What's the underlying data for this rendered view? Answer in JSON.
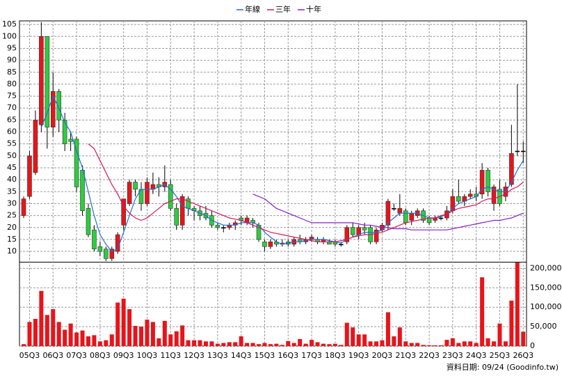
{
  "chart_data": {
    "type": "candlestick",
    "categories": [
      null,
      "05Q3",
      null,
      null,
      null,
      "06Q3",
      null,
      null,
      null,
      "07Q3",
      null,
      null,
      null,
      "08Q3",
      null,
      null,
      null,
      "09Q3",
      null,
      null,
      null,
      "10Q3",
      null,
      null,
      null,
      "11Q3",
      null,
      null,
      null,
      "12Q3",
      null,
      null,
      null,
      "13Q3",
      null,
      null,
      null,
      "14Q3",
      null,
      null,
      null,
      "15Q3",
      null,
      null,
      null,
      "16Q3",
      null,
      null,
      null,
      "17Q3",
      null,
      null,
      null,
      "18Q3",
      null,
      null,
      null,
      "19Q3",
      null,
      null,
      null,
      "20Q3",
      null,
      null,
      null,
      "21Q3",
      null,
      null,
      null,
      "22Q3",
      null,
      null,
      null,
      "23Q3",
      null,
      null,
      null,
      "24Q3",
      null,
      null,
      null,
      "25Q3",
      null,
      null,
      null,
      "26Q3"
    ],
    "open": [
      25,
      33,
      43,
      63,
      100,
      62,
      77,
      65,
      57,
      57,
      44,
      28,
      19,
      12,
      11,
      7,
      10,
      21,
      30,
      39,
      36,
      30,
      36,
      38,
      37,
      38,
      28,
      21,
      32,
      28,
      27,
      26,
      25,
      21,
      20,
      20,
      21,
      24,
      22,
      23,
      21,
      14,
      12,
      14,
      13,
      14,
      13,
      15,
      14,
      15,
      15,
      14,
      14,
      14,
      13,
      14,
      20,
      17,
      20,
      20,
      14,
      19,
      21,
      28,
      26,
      27,
      23,
      25,
      27,
      24,
      23,
      24,
      24,
      27,
      33,
      31,
      33,
      34,
      34,
      44,
      30,
      36,
      33,
      38,
      52,
      52
    ],
    "high": [
      33,
      52,
      69,
      106,
      100,
      85,
      78,
      68,
      60,
      58,
      46,
      30,
      21,
      14,
      12,
      12,
      18,
      32,
      40,
      40,
      39,
      41,
      43,
      41,
      46,
      40,
      30,
      34,
      33,
      29,
      29,
      29,
      27,
      22,
      21,
      22,
      23,
      25,
      25,
      24,
      22,
      15,
      15,
      15,
      15,
      15,
      16,
      17,
      16,
      17,
      16,
      16,
      15,
      15,
      14,
      21,
      22,
      21,
      22,
      21,
      20,
      22,
      32,
      30,
      34,
      28,
      27,
      28,
      28,
      25,
      25,
      25,
      29,
      36,
      40,
      34,
      36,
      37,
      47,
      45,
      38,
      40,
      39,
      63,
      80,
      56
    ],
    "low": [
      24,
      32,
      42,
      60,
      53,
      58,
      60,
      52,
      52,
      35,
      25,
      16,
      10,
      8,
      6,
      6,
      9,
      19,
      29,
      33,
      27,
      29,
      34,
      33,
      35,
      27,
      19,
      19,
      25,
      23,
      23,
      23,
      20,
      19,
      18,
      19,
      19,
      21,
      21,
      20,
      14,
      10,
      11,
      12,
      12,
      12,
      12,
      13,
      13,
      14,
      13,
      13,
      13,
      12,
      12,
      13,
      16,
      15,
      17,
      13,
      13,
      18,
      19,
      27,
      25,
      21,
      21,
      24,
      22,
      21,
      22,
      23,
      23,
      26,
      30,
      29,
      32,
      31,
      32,
      33,
      27,
      29,
      31,
      37,
      50,
      47
    ],
    "close": [
      32,
      50,
      65,
      100,
      62,
      77,
      65,
      55,
      56,
      37,
      27,
      17,
      11,
      10,
      7,
      11,
      17,
      32,
      39,
      36,
      30,
      39,
      38,
      37,
      39,
      28,
      21,
      33,
      28,
      27,
      25,
      24,
      21,
      20,
      20,
      21,
      22,
      23,
      24,
      22,
      15,
      12,
      14,
      13,
      13.5,
      13,
      15,
      14,
      15,
      16,
      14,
      15,
      13,
      13,
      13,
      20,
      17,
      20,
      19,
      14,
      19,
      21,
      31,
      28,
      28,
      22,
      26,
      27,
      23,
      22,
      24,
      24,
      27,
      33,
      31,
      33,
      34,
      33,
      44,
      35,
      37,
      30,
      37,
      51,
      52,
      52
    ],
    "up_color": "#e8141a",
    "down_color": "#2ecc40",
    "flat_color": "#000000",
    "lines": [
      {
        "name": "年線",
        "color": "#1f6fd1",
        "values": [
          null,
          null,
          null,
          62,
          68,
          75,
          70,
          64,
          60,
          52,
          45,
          35,
          25,
          17,
          13,
          10,
          11,
          18,
          25,
          32,
          36,
          36,
          36,
          37,
          38,
          36,
          33,
          29,
          28,
          27,
          26,
          25,
          23,
          22,
          21,
          21,
          21,
          22,
          22,
          22,
          21,
          18,
          16,
          14,
          13,
          13.5,
          14,
          14,
          14.5,
          15,
          15,
          15,
          14.5,
          14,
          13.5,
          15,
          16,
          17,
          18,
          18,
          18,
          19,
          22,
          24,
          26,
          26,
          26,
          26,
          25,
          24,
          24,
          24.5,
          25.5,
          28,
          30,
          31,
          32,
          33,
          36,
          37,
          36,
          35,
          35,
          39,
          44,
          48
        ]
      },
      {
        "name": "三年",
        "color": "#d6175c",
        "values": [
          null,
          null,
          null,
          null,
          null,
          null,
          null,
          null,
          null,
          null,
          null,
          55,
          53,
          48,
          43,
          38,
          34,
          29,
          26,
          24,
          23,
          24,
          26,
          28,
          30,
          31,
          32,
          32,
          31,
          30,
          29,
          28,
          27,
          26,
          25,
          24,
          23.5,
          23,
          22,
          21,
          20,
          19,
          18,
          17.5,
          17,
          16.5,
          16,
          15.5,
          15,
          14.5,
          14,
          14,
          14,
          14,
          14.5,
          15,
          16,
          16.5,
          17,
          17,
          17.5,
          18,
          19,
          20,
          21,
          22,
          22.5,
          23,
          23.5,
          24,
          24,
          25,
          25.5,
          27,
          28,
          28.5,
          29,
          29.5,
          31,
          32,
          32,
          33,
          34,
          36,
          37,
          39
        ]
      },
      {
        "name": "十年",
        "color": "#8a1fc4",
        "values": [
          null,
          null,
          null,
          null,
          null,
          null,
          null,
          null,
          null,
          null,
          null,
          null,
          null,
          null,
          null,
          null,
          null,
          null,
          null,
          null,
          null,
          null,
          null,
          null,
          null,
          null,
          null,
          null,
          null,
          null,
          null,
          null,
          null,
          null,
          null,
          null,
          null,
          null,
          null,
          34,
          33,
          32,
          30,
          28,
          27,
          26,
          25,
          24,
          23,
          22,
          22,
          22,
          22,
          22,
          22,
          22,
          22,
          21.5,
          21,
          21,
          20.5,
          20,
          20,
          19.5,
          19.5,
          19.5,
          19,
          19,
          19,
          19,
          19,
          19,
          19,
          19.5,
          20,
          20.5,
          21,
          21.5,
          22,
          22.5,
          23,
          23,
          23.5,
          24,
          25,
          26
        ]
      }
    ],
    "ylim": [
      5.5,
      106.5
    ],
    "yticks": [
      10,
      15,
      20,
      25,
      30,
      35,
      40,
      45,
      50,
      55,
      60,
      65,
      70,
      75,
      80,
      85,
      90,
      95,
      100,
      105
    ],
    "volume": {
      "color": "#e8141a",
      "values": [
        5000,
        62000,
        70000,
        142000,
        80000,
        95000,
        62000,
        42000,
        58000,
        35000,
        40000,
        25000,
        28000,
        12000,
        15000,
        30000,
        112000,
        122000,
        95000,
        52000,
        50000,
        68000,
        62000,
        20000,
        65000,
        30000,
        38000,
        53000,
        15000,
        15000,
        15000,
        12000,
        12000,
        6000,
        8000,
        10000,
        10000,
        25000,
        8000,
        8000,
        5000,
        8000,
        5000,
        6000,
        3000,
        13000,
        8000,
        18000,
        6000,
        16000,
        10000,
        6000,
        5000,
        6000,
        3000,
        60000,
        48000,
        30000,
        30000,
        12000,
        12000,
        15000,
        87000,
        25000,
        48000,
        12000,
        8000,
        8000,
        3000,
        2000,
        2000,
        2000,
        16000,
        20000,
        8000,
        12000,
        12000,
        8000,
        177000,
        20000,
        12000,
        58000,
        12000,
        117000,
        215000,
        37000
      ],
      "ylim": [
        0,
        216000
      ],
      "yticks": [
        0,
        {
          "value": 50000,
          "label": "50,000"
        },
        {
          "value": 100000,
          "label": "100,000"
        },
        {
          "value": 150000,
          "label": "150,000"
        },
        {
          "value": 200000,
          "label": "200,000"
        }
      ]
    },
    "grid": true,
    "footnote": "資料日期: 09/24  (Goodinfo.tw)"
  }
}
